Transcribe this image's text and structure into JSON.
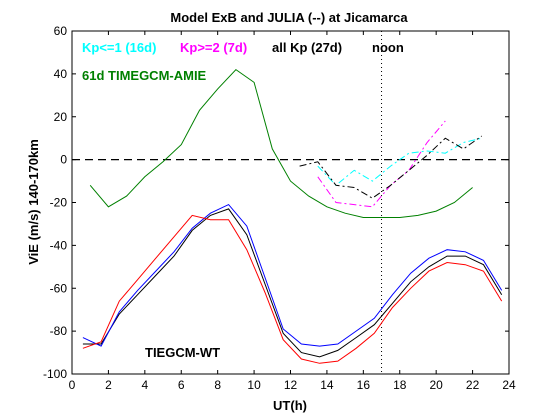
{
  "chart_data": {
    "type": "line",
    "title": "Model ExB and JULIA (--) at Jicamarca",
    "xlabel": "UT(h)",
    "ylabel": "ViE (m/s) 140-170km",
    "xlim": [
      0,
      24
    ],
    "ylim": [
      -100,
      60
    ],
    "xticks": [
      0,
      2,
      4,
      6,
      8,
      10,
      12,
      14,
      16,
      18,
      20,
      22,
      24
    ],
    "yticks": [
      -100,
      -80,
      -60,
      -40,
      -20,
      0,
      20,
      40,
      60
    ],
    "grid": false,
    "zero_line": {
      "y": 0,
      "style": "dashed",
      "color": "#000000"
    },
    "noon_line": {
      "x": 17,
      "style": "dotted",
      "label": "noon"
    },
    "annotations": [
      {
        "text": "Kp<=1 (16d)",
        "color": "#00ffff"
      },
      {
        "text": "Kp>=2 (7d)",
        "color": "#ff00ff"
      },
      {
        "text": "all Kp (27d)",
        "color": "#000000"
      },
      {
        "text": "61d TIMEGCM-AMIE",
        "color": "#008000"
      },
      {
        "text": "TIEGCM-WT",
        "color": "#000000"
      }
    ],
    "series": [
      {
        "color": "#008000",
        "style": "solid",
        "x": [
          1,
          2,
          3,
          4,
          5,
          6,
          7,
          8,
          9,
          10,
          11,
          12,
          13,
          14,
          15,
          16,
          17,
          18,
          19,
          20,
          21,
          22
        ],
        "values": [
          -12,
          -22,
          -17,
          -8,
          -1,
          7,
          23,
          33,
          42,
          36,
          5,
          -10,
          -17,
          -22,
          -25,
          -27,
          -27,
          -27,
          -26,
          -24,
          -20,
          -13
        ]
      },
      {
        "color": "#00ffff",
        "style": "dashdot",
        "x": [
          13.5,
          14.5,
          15.5,
          16.5,
          17.5,
          18.5,
          19.5,
          20.5,
          21.5,
          22.5
        ],
        "values": [
          -3,
          -12,
          -5,
          -10,
          -3,
          3,
          4,
          3,
          8,
          10
        ]
      },
      {
        "color": "#ff00ff",
        "style": "dashdot",
        "x": [
          13.5,
          14.5,
          15.5,
          16.5,
          17.5,
          18.5,
          19.5,
          20.5
        ],
        "values": [
          -8,
          -20,
          -21,
          -22,
          -12,
          -5,
          8,
          18
        ]
      },
      {
        "color": "#000000",
        "style": "dashdot",
        "x": [
          12.5,
          13.5,
          14.5,
          15.5,
          16.5,
          17.5,
          18.5,
          19.5,
          20.5,
          21.5,
          22.5
        ],
        "values": [
          -3,
          -1,
          -12,
          -13,
          -18,
          -12,
          -5,
          2,
          10,
          5,
          11
        ]
      },
      {
        "color": "#000000",
        "style": "solid",
        "x": [
          0.6,
          1.6,
          2.6,
          3.6,
          4.6,
          5.6,
          6.6,
          7.6,
          8.6,
          9.6,
          10.6,
          11.6,
          12.6,
          13.6,
          14.6,
          15.6,
          16.6,
          17.6,
          18.6,
          19.6,
          20.6,
          21.6,
          22.6,
          23.6
        ],
        "values": [
          -86,
          -86,
          -72,
          -63,
          -54,
          -45,
          -33,
          -26,
          -23,
          -35,
          -58,
          -81,
          -90,
          -92,
          -89,
          -83,
          -77,
          -67,
          -57,
          -50,
          -45,
          -45,
          -49,
          -63
        ]
      },
      {
        "color": "#0000ff",
        "style": "solid",
        "x": [
          0.6,
          1.6,
          2.6,
          3.6,
          4.6,
          5.6,
          6.6,
          7.6,
          8.6,
          9.6,
          10.6,
          11.6,
          12.6,
          13.6,
          14.6,
          15.6,
          16.6,
          17.6,
          18.6,
          19.6,
          20.6,
          21.6,
          22.6,
          23.6
        ],
        "values": [
          -83,
          -87,
          -71,
          -61,
          -52,
          -43,
          -32,
          -25,
          -21,
          -31,
          -55,
          -79,
          -86,
          -87,
          -86,
          -80,
          -74,
          -63,
          -53,
          -46,
          -42,
          -43,
          -47,
          -61
        ]
      },
      {
        "color": "#ff0000",
        "style": "solid",
        "x": [
          0.6,
          1.6,
          2.6,
          3.6,
          4.6,
          5.6,
          6.6,
          7.6,
          8.6,
          9.6,
          10.6,
          11.6,
          12.6,
          13.6,
          14.6,
          15.6,
          16.6,
          17.6,
          18.6,
          19.6,
          20.6,
          21.6,
          22.6,
          23.6
        ],
        "values": [
          -88,
          -85,
          -66,
          -56,
          -46,
          -36,
          -26,
          -28,
          -28,
          -42,
          -62,
          -84,
          -93,
          -95,
          -94,
          -88,
          -81,
          -69,
          -60,
          -52,
          -48,
          -49,
          -52,
          -66
        ]
      }
    ]
  }
}
